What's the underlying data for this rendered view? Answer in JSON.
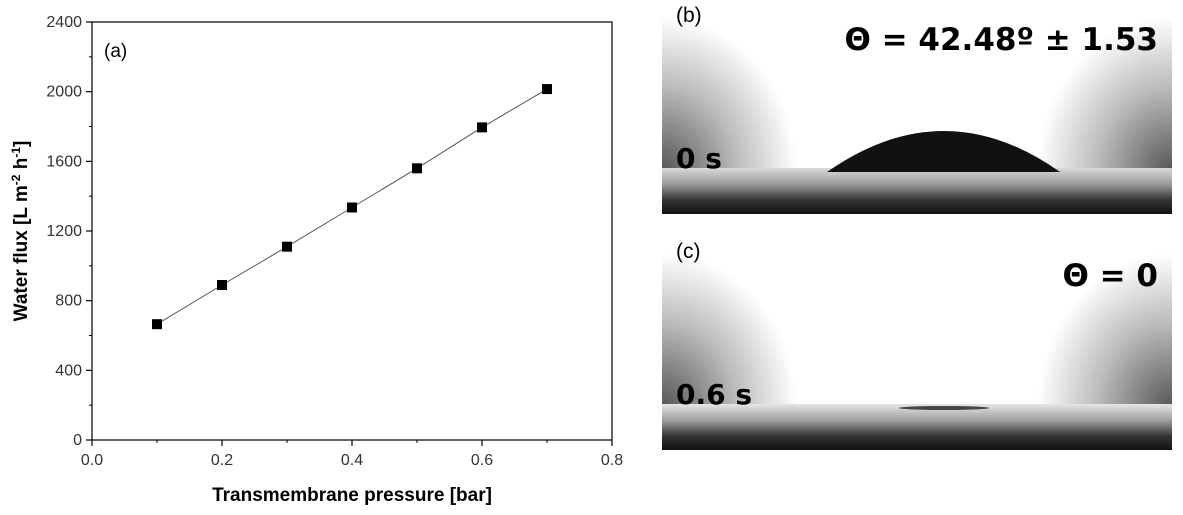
{
  "chart_data": {
    "type": "scatter",
    "panel_label": "(a)",
    "xlabel": "Transmembrane pressure [bar]",
    "ylabel_main": "Water flux [L m",
    "ylabel_sup1": "-2",
    "ylabel_mid": " h",
    "ylabel_sup2": "-1",
    "ylabel_end": "]",
    "xlim": [
      0.0,
      0.8
    ],
    "ylim": [
      0,
      2400
    ],
    "xticks": [
      "0.0",
      "0.2",
      "0.4",
      "0.6",
      "0.8"
    ],
    "yticks": [
      "0",
      "400",
      "800",
      "1200",
      "1600",
      "2000",
      "2400"
    ],
    "grid": false,
    "trend_line": true,
    "marker_color": "#000000",
    "line_color": "#555555",
    "x": [
      0.1,
      0.2,
      0.3,
      0.4,
      0.5,
      0.6,
      0.7
    ],
    "y": [
      665,
      890,
      1110,
      1335,
      1560,
      1795,
      2015
    ]
  },
  "panel_b": {
    "label": "(b)",
    "angle_text": "Θ = 42.48º ± 1.53",
    "time_text": "0 s"
  },
  "panel_c": {
    "label": "(c)",
    "angle_text": "Θ = 0",
    "time_text": "0.6 s"
  }
}
